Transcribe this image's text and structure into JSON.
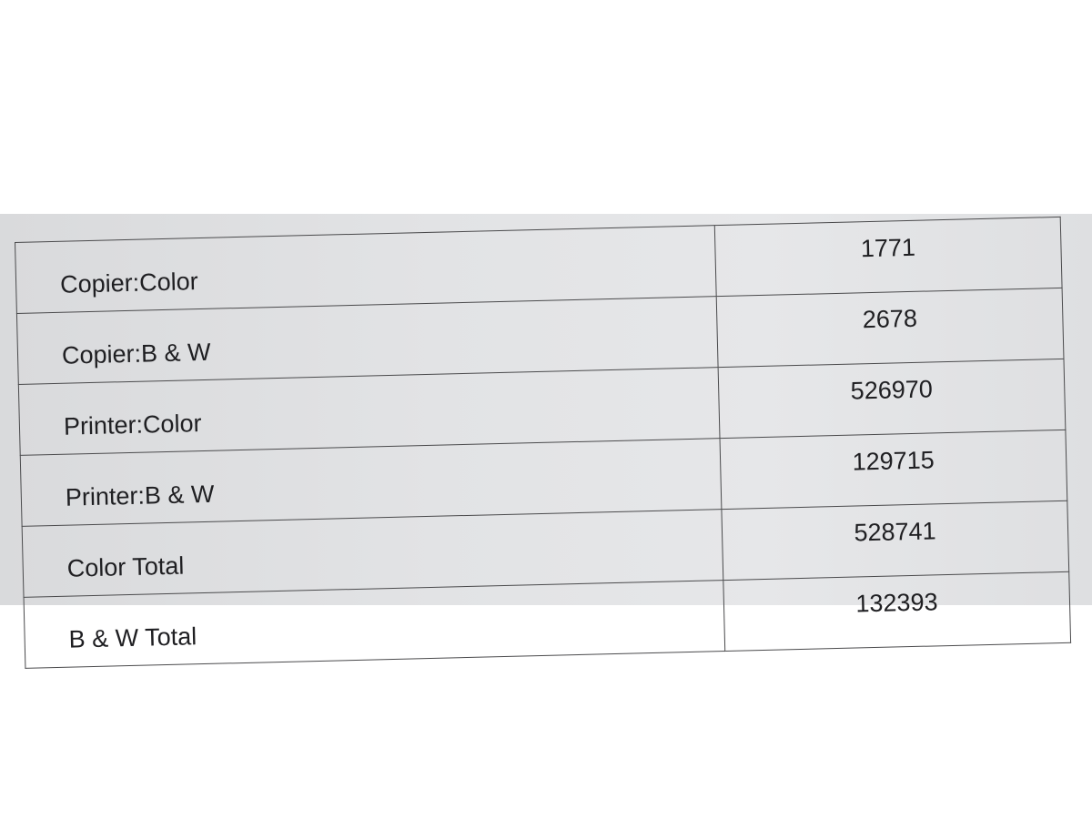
{
  "table": {
    "rows": [
      {
        "label": "Copier:Color",
        "value": "1771"
      },
      {
        "label": "Copier:B & W",
        "value": "2678"
      },
      {
        "label": "Printer:Color",
        "value": "526970"
      },
      {
        "label": "Printer:B & W",
        "value": "129715"
      },
      {
        "label": "Color Total",
        "value": "528741"
      },
      {
        "label": "B & W Total",
        "value": "132393"
      }
    ]
  }
}
